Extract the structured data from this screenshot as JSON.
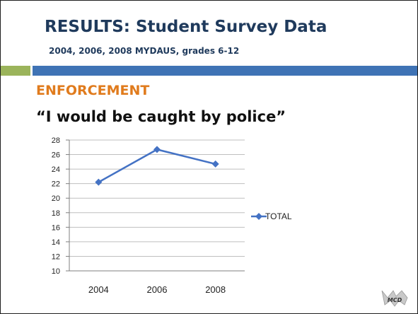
{
  "slide": {
    "title": "RESULTS: Student Survey Data",
    "subtitle": "2004, 2006, 2008 MYDAUS, grades 6-12",
    "section": "ENFORCEMENT",
    "quote": "“I would be caught by police”",
    "logo_text": "MCD"
  },
  "colors": {
    "title": "#1f3a5c",
    "section": "#e07b1d",
    "accent_green": "#9bb45b",
    "accent_blue": "#3f73b5",
    "series": "#4472c4"
  },
  "chart_data": {
    "type": "line",
    "x": [
      "2004",
      "2006",
      "2008"
    ],
    "series": [
      {
        "name": "TOTAL",
        "values": [
          22.2,
          26.7,
          24.7
        ]
      }
    ],
    "ylim": [
      10,
      28
    ],
    "yticks": [
      10,
      12,
      14,
      16,
      18,
      20,
      22,
      24,
      26,
      28
    ],
    "grid": true,
    "legend": "right",
    "marker": "diamond"
  }
}
